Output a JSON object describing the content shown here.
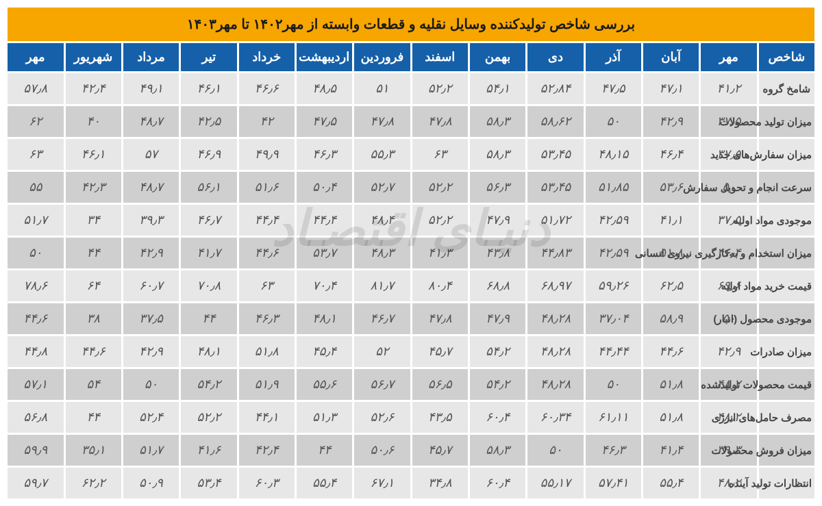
{
  "title": "بررسی شاخص تولیدکننده وسایل نقلیه و قطعات وابسته از مهر۱۴۰۲ تا مهر۱۴۰۳",
  "watermark": "دنیـای اقتصـاد",
  "colors": {
    "title_bg": "#f7a600",
    "header_bg": "#1560a8",
    "header_fg": "#ffffff",
    "row_odd_bg": "#e7e7e7",
    "row_even_bg": "#cfcfcf",
    "cell_fg": "#555555"
  },
  "columns": [
    "شاخص",
    "مهر",
    "آبان",
    "آذر",
    "دی",
    "بهمن",
    "اسفند",
    "فروردین",
    "اردیبهشت",
    "خرداد",
    "تیر",
    "مرداد",
    "شهریور",
    "مهر"
  ],
  "rows": [
    {
      "label": "شامخ گروه",
      "cells": [
        "۴۱٫۲",
        "۴۷٫۱",
        "۴۷٫۵",
        "۵۲٫۸۴",
        "۵۴٫۱",
        "۵۲٫۲",
        "۵۱",
        "۴۸٫۵",
        "۴۶٫۶",
        "۴۶٫۱",
        "۴۹٫۱",
        "۴۲٫۴",
        "۵۷٫۸"
      ]
    },
    {
      "label": "میزان تولید محصولات",
      "cells": [
        "۳۷٫۵",
        "۴۲٫۹",
        "۵۰",
        "۵۸٫۶۲",
        "۵۸٫۳",
        "۴۷٫۸",
        "۴۷٫۸",
        "۴۷٫۵",
        "۴۲",
        "۴۲٫۵",
        "۴۸٫۷",
        "۴۰",
        "۶۲"
      ]
    },
    {
      "label": "میزان سفارش‌های جدید",
      "cells": [
        "۳۷٫۵",
        "۴۶٫۴",
        "۴۸٫۱۵",
        "۵۳٫۴۵",
        "۵۸٫۳",
        "۶۳",
        "۵۵٫۳",
        "۴۶٫۳",
        "۴۹٫۹",
        "۴۶٫۹",
        "۵۷",
        "۴۶٫۱",
        "۶۳"
      ]
    },
    {
      "label": "سرعت انجام و تحویل سفارش",
      "cells": [
        "۵۰",
        "۵۳٫۶",
        "۵۱٫۸۵",
        "۵۳٫۴۵",
        "۵۶٫۳",
        "۵۲٫۲",
        "۵۲٫۷",
        "۵۰٫۴",
        "۵۱٫۶",
        "۵۶٫۱",
        "۴۸٫۷",
        "۴۲٫۳",
        "۵۵"
      ]
    },
    {
      "label": "موجودی مواد اولیه",
      "cells": [
        "۳۷٫۵",
        "۴۱٫۱",
        "۴۲٫۵۹",
        "۵۱٫۷۲",
        "۴۷٫۹",
        "۵۲٫۲",
        "۴۸٫۴",
        "۴۴٫۴",
        "۴۴٫۴",
        "۴۶٫۷",
        "۳۹٫۳",
        "۳۴",
        "۵۱٫۷"
      ]
    },
    {
      "label": "میزان استخدام و به‌کارگیری نیروی انسانی",
      "cells": [
        "۴۶٫۴",
        "۵۱٫۸",
        "۴۲٫۵۹",
        "۴۴٫۸۳",
        "۴۳٫۸",
        "۴۱٫۳",
        "۴۸٫۳",
        "۵۳٫۷",
        "۴۴٫۶",
        "۴۱٫۷",
        "۴۲٫۹",
        "۴۴",
        "۵۰"
      ]
    },
    {
      "label": "قیمت خرید مواد اولیه",
      "cells": [
        "۶۹٫۶",
        "۶۲٫۵",
        "۵۹٫۲۶",
        "۶۸٫۹۷",
        "۶۸٫۸",
        "۸۰٫۴",
        "۸۱٫۷",
        "۷۰٫۴",
        "۶۳",
        "۷۰٫۸",
        "۶۰٫۷",
        "۶۴",
        "۷۸٫۶"
      ]
    },
    {
      "label": "موجودی محصول (انبار)",
      "cells": [
        "۵۰",
        "۵۸٫۹",
        "۳۷٫۰۴",
        "۴۸٫۲۸",
        "۴۷٫۹",
        "۴۷٫۸",
        "۴۶٫۷",
        "۴۸٫۱",
        "۴۶٫۳",
        "۴۴",
        "۳۷٫۵",
        "۳۸",
        "۴۴٫۶"
      ]
    },
    {
      "label": "میزان صادرات",
      "cells": [
        "۴۲٫۹",
        "۴۴٫۶",
        "۴۴٫۴۴",
        "۴۸٫۲۸",
        "۵۴٫۲",
        "۴۵٫۷",
        "۵۲",
        "۴۵٫۴",
        "۵۱٫۸",
        "۴۸٫۱",
        "۴۲٫۹",
        "۴۴٫۶",
        "۴۴٫۸"
      ]
    },
    {
      "label": "قیمت محصولات تولیدشده",
      "cells": [
        "۴۸٫۲",
        "۵۱٫۸",
        "۵۰",
        "۴۸٫۲۸",
        "۵۴٫۲",
        "۵۶٫۵",
        "۵۶٫۷",
        "۵۵٫۶",
        "۵۱٫۹",
        "۵۴٫۲",
        "۵۰",
        "۵۴",
        "۵۷٫۱"
      ]
    },
    {
      "label": "مصرف حامل‌های انرژی",
      "cells": [
        "۴۸٫۲",
        "۵۱٫۸",
        "۶۱٫۱۱",
        "۶۰٫۳۴",
        "۶۰٫۴",
        "۴۳٫۵",
        "۵۲٫۶",
        "۵۱٫۳",
        "۴۴٫۱",
        "۵۲٫۲",
        "۵۲٫۴",
        "۴۴",
        "۵۶٫۸"
      ]
    },
    {
      "label": "میزان فروش محصولات",
      "cells": [
        "۳۹٫۳",
        "۴۱٫۴",
        "۴۶٫۳",
        "۵۰",
        "۵۸٫۳",
        "۴۵٫۷",
        "۵۰٫۶",
        "۴۴",
        "۴۲٫۴",
        "۴۱٫۶",
        "۵۱٫۷",
        "۳۵٫۱",
        "۵۹٫۹"
      ]
    },
    {
      "label": "انتظارات تولید آینده",
      "cells": [
        "۴۸٫۲",
        "۵۵٫۴",
        "۵۷٫۴۱",
        "۵۵٫۱۷",
        "۶۰٫۴",
        "۳۴٫۸",
        "۶۷٫۱",
        "۵۵٫۴",
        "۶۰٫۳",
        "۵۳٫۴",
        "۵۰٫۹",
        "۶۲٫۲",
        "۵۹٫۷"
      ]
    }
  ]
}
